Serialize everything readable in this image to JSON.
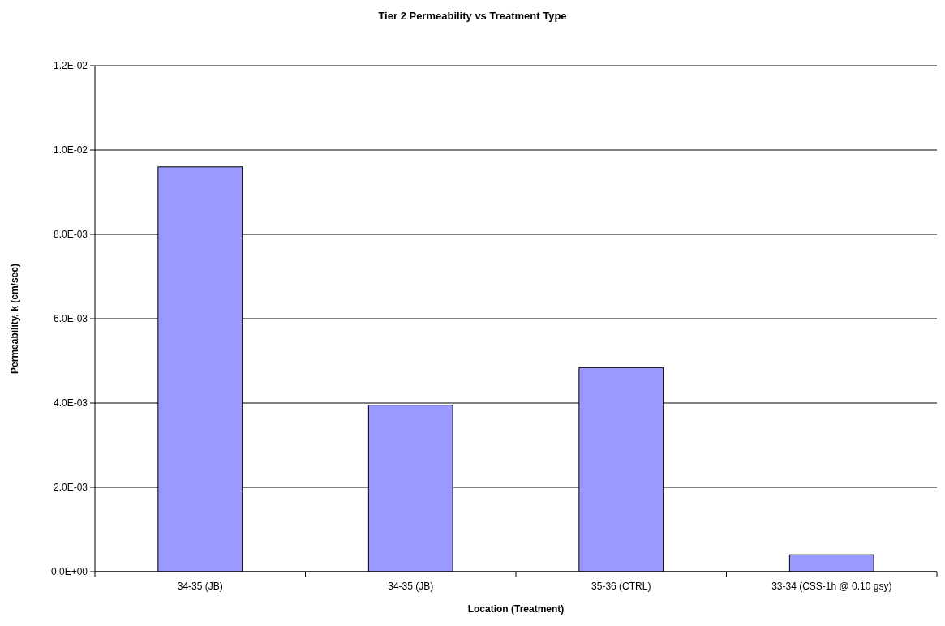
{
  "chart_data": {
    "type": "bar",
    "title": "Tier 2 Permeability vs Treatment Type",
    "xlabel": "Location (Treatment)",
    "ylabel": "Permeability, k (cm/sec)",
    "categories": [
      "34-35 (JB)",
      "34-35 (JB)",
      "35-36 (CTRL)",
      "33-34 (CSS-1h @ 0.10 gsy)"
    ],
    "values": [
      0.0096,
      0.00395,
      0.00484,
      0.0004
    ],
    "color": "#9999ff",
    "ylim": [
      0,
      0.012
    ],
    "yticks": [
      {
        "value": 0,
        "label": "0.0E+00"
      },
      {
        "value": 0.002,
        "label": "2.0E-03"
      },
      {
        "value": 0.004,
        "label": "4.0E-03"
      },
      {
        "value": 0.006,
        "label": "6.0E-03"
      },
      {
        "value": 0.008,
        "label": "8.0E-03"
      },
      {
        "value": 0.01,
        "label": "1.0E-02"
      },
      {
        "value": 0.012,
        "label": "1.2E-02"
      }
    ],
    "grid": "y"
  }
}
